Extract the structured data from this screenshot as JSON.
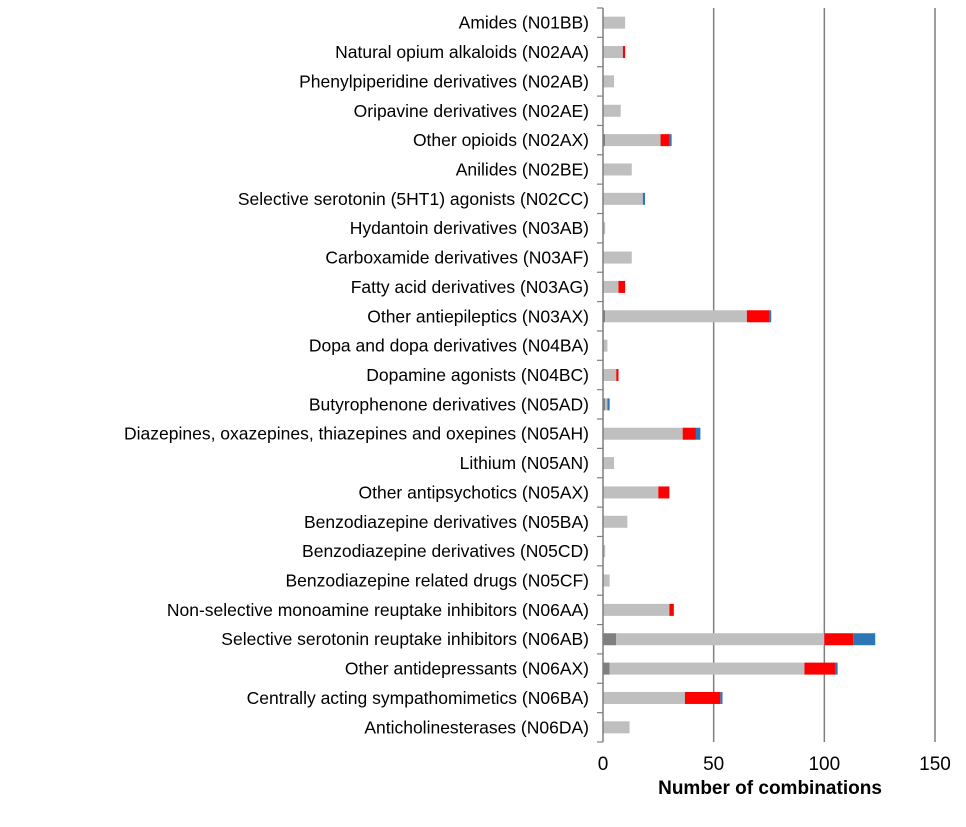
{
  "chart_data": {
    "type": "bar",
    "orientation": "horizontal",
    "stacked": true,
    "xlabel": "Number of combinations",
    "ylabel": "",
    "xlim": [
      0,
      150
    ],
    "xticks": [
      0,
      50,
      100,
      150
    ],
    "grid": "vertical major gridlines",
    "legend": "none",
    "categories": [
      "Amides (N01BB)",
      "Natural opium alkaloids (N02AA)",
      "Phenylpiperidine derivatives (N02AB)",
      "Oripavine derivatives (N02AE)",
      "Other opioids (N02AX)",
      "Anilides (N02BE)",
      "Selective serotonin (5HT1) agonists (N02CC)",
      "Hydantoin derivatives (N03AB)",
      "Carboxamide derivatives (N03AF)",
      "Fatty acid derivatives (N03AG)",
      "Other antiepileptics (N03AX)",
      "Dopa and dopa derivatives (N04BA)",
      "Dopamine agonists (N04BC)",
      "Butyrophenone derivatives (N05AD)",
      "Diazepines, oxazepines, thiazepines and oxepines (N05AH)",
      "Lithium (N05AN)",
      "Other antipsychotics (N05AX)",
      "Benzodiazepine derivatives (N05BA)",
      "Benzodiazepine derivatives (N05CD)",
      "Benzodiazepine related drugs (N05CF)",
      "Non-selective monoamine reuptake inhibitors (N06AA)",
      "Selective serotonin reuptake inhibitors (N06AB)",
      "Other antidepressants (N06AX)",
      "Centrally acting sympathomimetics (N06BA)",
      "Anticholinesterases (N06DA)"
    ],
    "series": [
      {
        "color": "#7f7f7f",
        "values": [
          0,
          0,
          0,
          0,
          1,
          0,
          0,
          0,
          0,
          0,
          1,
          0,
          0,
          1,
          0,
          0,
          0,
          0,
          0,
          0,
          0,
          6,
          3,
          0,
          0
        ]
      },
      {
        "color": "#bfbfbf",
        "values": [
          10,
          9,
          5,
          8,
          25,
          13,
          18,
          1,
          13,
          7,
          64,
          2,
          6,
          1,
          36,
          5,
          25,
          11,
          1,
          3,
          30,
          94,
          88,
          37,
          12
        ]
      },
      {
        "color": "#ff0000",
        "values": [
          0,
          1,
          0,
          0,
          4,
          0,
          0,
          0,
          0,
          3,
          10,
          0,
          1,
          0,
          6,
          0,
          5,
          0,
          0,
          0,
          2,
          13,
          14,
          16,
          0
        ]
      },
      {
        "color": "#2e75b6",
        "values": [
          0,
          0,
          0,
          0,
          1,
          0,
          1,
          0,
          0,
          0,
          1,
          0,
          0,
          1,
          2,
          0,
          0,
          0,
          0,
          0,
          0,
          10,
          1,
          1,
          0
        ]
      }
    ],
    "colors": {
      "gridline": "#7f7f7f",
      "axis": "#7f7f7f"
    }
  }
}
